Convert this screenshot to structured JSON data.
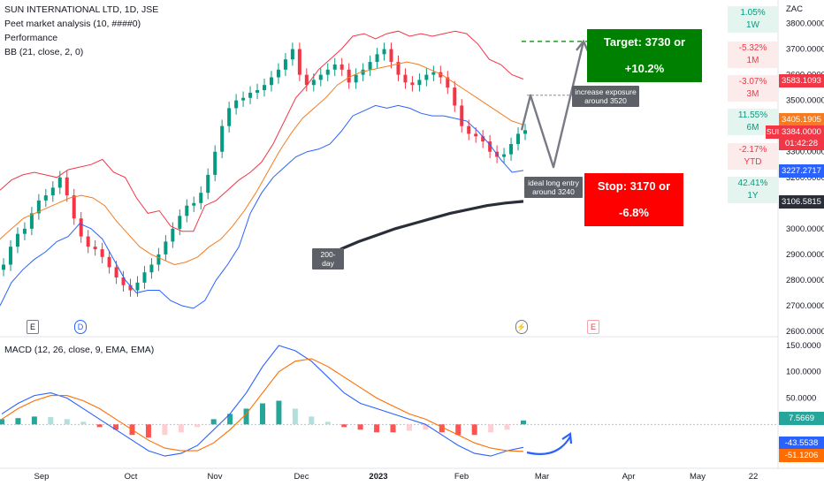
{
  "header": {
    "symbol": "SUN INTERNATIONAL LTD, 1D, JSE",
    "indicator1": "Peet market analysis (10, ####0)",
    "indicator2": "Performance",
    "indicator3": "BB (21, close, 2, 0)",
    "macd_label": "MACD (12, 26, close, 9, EMA, EMA)"
  },
  "currency": "ZAC",
  "performance": [
    {
      "pct": "1.05%",
      "period": "1W",
      "sign": "pos"
    },
    {
      "pct": "-5.32%",
      "period": "1M",
      "sign": "neg"
    },
    {
      "pct": "-3.07%",
      "period": "3M",
      "sign": "neg"
    },
    {
      "pct": "11.55%",
      "period": "6M",
      "sign": "pos"
    },
    {
      "pct": "-2.17%",
      "period": "YTD",
      "sign": "neg"
    },
    {
      "pct": "42.41%",
      "period": "1Y",
      "sign": "pos"
    }
  ],
  "price_tags": {
    "bb_upper": "3583.1093",
    "bb_mid": "3405.1905",
    "last": "3384.0000",
    "ticker": "SUI",
    "countdown": "01:42:28",
    "bb_lower": "3227.2717",
    "ma200": "3106.5815"
  },
  "macd_tags": {
    "hist": "7.5669",
    "macd": "-43.5538",
    "signal": "-51.1206"
  },
  "annotations": {
    "target": "Target: 3730 or +10.2%",
    "stop": "Stop: 3170 or -6.8%",
    "increase_line1": "increase exposure",
    "increase_line2": "around 3520",
    "entry_line1": "ideal long entry",
    "entry_line2": "around 3240",
    "ma200": "200-day"
  },
  "markers": {
    "earnings": "E",
    "dividend": "D",
    "split": "E"
  },
  "colors": {
    "up": "#089981",
    "down": "#f23645",
    "bb_upper": "#f23645",
    "bb_mid": "#f57c20",
    "bb_lower": "#2962ff",
    "ma200": "#2a2e39",
    "macd": "#2962ff",
    "signal": "#ff6d00",
    "target": "#008000",
    "stop": "#ff0000"
  },
  "chart_data": [
    {
      "type": "candlestick",
      "title": "SUN INTERNATIONAL LTD, 1D, JSE",
      "ylabel": "ZAC",
      "ylim": [
        2600,
        3850
      ],
      "y_ticks": [
        "3800.0000",
        "3700.0000",
        "3600.0000",
        "3500.0000",
        "3400.0000",
        "3300.0000",
        "3200.0000",
        "3100.0000",
        "3000.0000",
        "2900.0000",
        "2800.0000",
        "2700.0000",
        "2600.0000"
      ],
      "x_ticks": [
        "Sep",
        "Oct",
        "Nov",
        "Dec",
        "2023",
        "Feb",
        "Mar",
        "Apr",
        "May",
        "22"
      ],
      "close_path": [
        2860,
        2930,
        2980,
        3000,
        3060,
        3110,
        3130,
        3160,
        3200,
        3130,
        3040,
        2970,
        2930,
        2920,
        2890,
        2850,
        2810,
        2780,
        2760,
        2790,
        2830,
        2860,
        2900,
        2950,
        3000,
        3050,
        3090,
        3100,
        3140,
        3210,
        3300,
        3400,
        3470,
        3500,
        3510,
        3530,
        3540,
        3560,
        3590,
        3620,
        3660,
        3700,
        3600,
        3560,
        3580,
        3600,
        3620,
        3640,
        3620,
        3570,
        3600,
        3620,
        3650,
        3680,
        3700,
        3650,
        3600,
        3570,
        3560,
        3580,
        3600,
        3610,
        3590,
        3550,
        3480,
        3400,
        3370,
        3360,
        3340,
        3300,
        3280,
        3290,
        3330,
        3370,
        3384
      ],
      "bb_upper_path": [
        3150,
        3190,
        3210,
        3220,
        3210,
        3200,
        3230,
        3240,
        3250,
        3270,
        3220,
        3200,
        3120,
        3060,
        3070,
        3010,
        2990,
        2990,
        3090,
        3110,
        3150,
        3190,
        3220,
        3260,
        3330,
        3420,
        3510,
        3560,
        3620,
        3660,
        3700,
        3750,
        3760,
        3740,
        3760,
        3770,
        3750,
        3760,
        3750,
        3760,
        3770,
        3760,
        3720,
        3660,
        3640,
        3600,
        3583
      ],
      "bb_mid_path": [
        2960,
        3000,
        3040,
        3060,
        3080,
        3100,
        3120,
        3130,
        3120,
        3090,
        3030,
        2980,
        2930,
        2900,
        2880,
        2860,
        2870,
        2890,
        2930,
        2960,
        3010,
        3070,
        3140,
        3220,
        3300,
        3370,
        3430,
        3470,
        3510,
        3560,
        3590,
        3610,
        3620,
        3630,
        3640,
        3650,
        3640,
        3620,
        3600,
        3570,
        3540,
        3510,
        3480,
        3450,
        3420,
        3405
      ],
      "bb_lower_path": [
        2700,
        2790,
        2840,
        2880,
        2910,
        2950,
        2970,
        3020,
        3000,
        2960,
        2880,
        2800,
        2750,
        2760,
        2760,
        2720,
        2700,
        2690,
        2720,
        2800,
        2860,
        2930,
        3060,
        3140,
        3200,
        3240,
        3280,
        3300,
        3310,
        3330,
        3380,
        3440,
        3460,
        3480,
        3470,
        3480,
        3470,
        3450,
        3440,
        3440,
        3430,
        3420,
        3380,
        3330,
        3270,
        3220,
        3227
      ],
      "ma200_path": [
        2920,
        2950,
        2975,
        3000,
        3020,
        3040,
        3060,
        3075,
        3090,
        3100,
        3106.58
      ],
      "levels": {
        "target": 3730,
        "stop": 3170,
        "increase_exposure": 3520,
        "ideal_entry": 3240,
        "last": 3384,
        "ma200": 3106.5815
      }
    },
    {
      "type": "line",
      "title": "MACD (12, 26, close, 9, EMA, EMA)",
      "ylim": [
        -75,
        160
      ],
      "y_ticks": [
        "150.0000",
        "100.0000",
        "50.0000"
      ],
      "series": [
        {
          "name": "MACD",
          "values": [
            20,
            40,
            55,
            60,
            50,
            30,
            10,
            -10,
            -30,
            -50,
            -60,
            -55,
            -40,
            -10,
            20,
            60,
            110,
            150,
            140,
            120,
            90,
            60,
            40,
            30,
            20,
            10,
            0,
            -20,
            -40,
            -55,
            -60,
            -50,
            -43.55
          ]
        },
        {
          "name": "Signal",
          "values": [
            10,
            30,
            45,
            55,
            55,
            45,
            30,
            10,
            -10,
            -30,
            -45,
            -50,
            -50,
            -35,
            -10,
            20,
            60,
            100,
            120,
            125,
            110,
            90,
            70,
            50,
            35,
            20,
            10,
            -5,
            -20,
            -35,
            -45,
            -50,
            -51.12
          ]
        }
      ],
      "histogram": [
        10,
        12,
        15,
        14,
        10,
        5,
        -5,
        -10,
        -20,
        -25,
        -20,
        -15,
        -5,
        10,
        20,
        30,
        40,
        45,
        30,
        15,
        5,
        -5,
        -10,
        -15,
        -15,
        -12,
        -10,
        -15,
        -20,
        -20,
        -15,
        -10,
        7.5669
      ]
    }
  ]
}
